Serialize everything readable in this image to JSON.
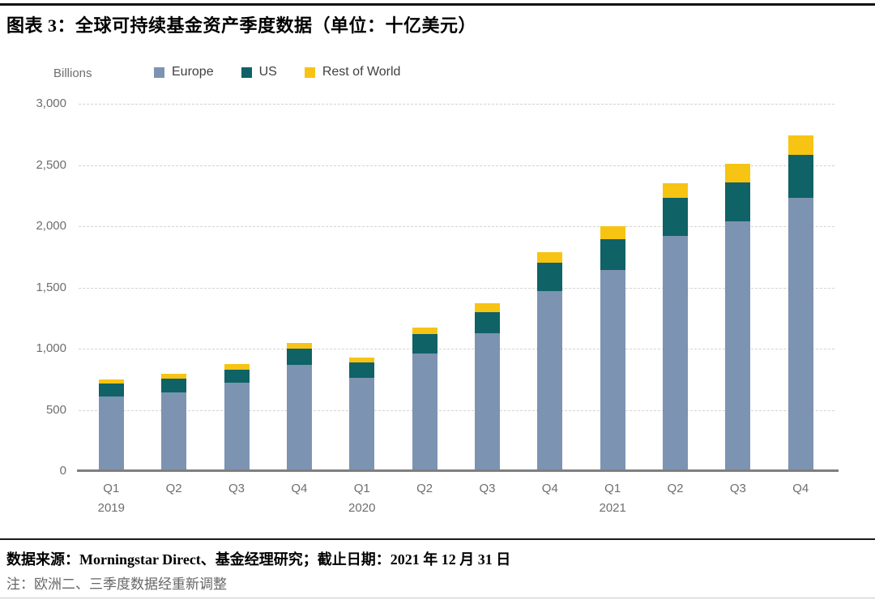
{
  "header": {
    "title": "图表 3：全球可持续基金资产季度数据（单位：十亿美元）"
  },
  "chart": {
    "axis_unit_label": "Billions"
  },
  "chart_data": {
    "type": "bar",
    "stacked": true,
    "title": "全球可持续基金资产季度数据（单位：十亿美元）",
    "ylabel": "Billions",
    "xlabel": "",
    "ylim": [
      0,
      3000
    ],
    "grid": "horizontal-dashed",
    "legend_position": "top",
    "categories": [
      "Q1",
      "Q2",
      "Q3",
      "Q4",
      "Q1",
      "Q2",
      "Q3",
      "Q4",
      "Q1",
      "Q2",
      "Q3",
      "Q4"
    ],
    "year_labels": [
      "2019",
      null,
      null,
      null,
      "2020",
      null,
      null,
      null,
      "2021",
      null,
      null,
      null
    ],
    "yticks": [
      0,
      500,
      1000,
      1500,
      2000,
      2500,
      3000
    ],
    "ytick_labels": [
      "0",
      "500",
      "1,000",
      "1,500",
      "2,000",
      "2,500",
      "3,000"
    ],
    "series": [
      {
        "name": "Europe",
        "color": "#7d93b2",
        "values": [
          610,
          645,
          725,
          865,
          765,
          960,
          1125,
          1470,
          1640,
          1920,
          2040,
          2230
        ]
      },
      {
        "name": "US",
        "color": "#0f6266",
        "values": [
          105,
          110,
          105,
          135,
          125,
          160,
          175,
          230,
          255,
          310,
          320,
          355
        ]
      },
      {
        "name": "Rest of World",
        "color": "#f7c413",
        "values": [
          35,
          40,
          45,
          45,
          40,
          50,
          70,
          90,
          105,
          120,
          150,
          155
        ]
      }
    ],
    "totals": [
      750,
      795,
      875,
      1045,
      930,
      1170,
      1370,
      1790,
      2000,
      2350,
      2510,
      2740
    ]
  },
  "footer": {
    "source_line": "数据来源：Morningstar Direct、基金经理研究；截止日期：2021 年 12 月 31 日",
    "note_line": "注：欧洲二、三季度数据经重新调整"
  },
  "colors": {
    "europe": "#7d93b2",
    "us": "#0f6266",
    "rest_of_world": "#f7c413",
    "gridline": "#d4d4d4",
    "axis_line": "#7f7f7f",
    "tick_text": "#6e6e6e",
    "legend_text": "#404040",
    "title_text": "#000000",
    "note_text": "#666666"
  }
}
